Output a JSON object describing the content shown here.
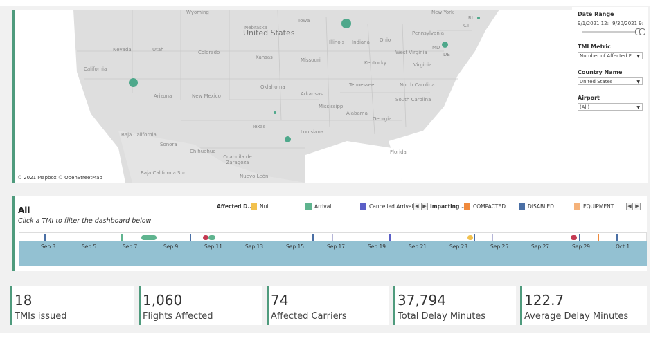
{
  "map": {
    "attribution": "© 2021 Mapbox © OpenStreetMap",
    "country_label": "United States",
    "place_labels": [
      "Wyoming",
      "Nebraska",
      "Iowa",
      "New York",
      "Pennsylvania",
      "Illinois",
      "Indiana",
      "Ohio",
      "Nevada",
      "Utah",
      "Colorado",
      "Kansas",
      "Missouri",
      "Kentucky",
      "West Virginia",
      "Virginia",
      "MD",
      "DE",
      "CT",
      "RI",
      "California",
      "Oklahoma",
      "Arkansas",
      "Tennessee",
      "North Carolina",
      "Arizona",
      "New Mexico",
      "Mississippi",
      "South Carolina",
      "Alabama",
      "Georgia",
      "Texas",
      "Louisiana",
      "Baja California",
      "Sonora",
      "Chihuahua",
      "Coahuila de Zaragoza",
      "Florida",
      "Baja California Sur",
      "Nuevo León"
    ],
    "dot_color": "#4ea88b"
  },
  "filters": {
    "date_range": {
      "title": "Date Range",
      "start": "9/1/2021 12:",
      "end": "9/30/2021 9:"
    },
    "tmi_metric": {
      "title": "TMI Metric",
      "value": "Number of Affected F..."
    },
    "country": {
      "title": "Country Name",
      "value": "United States"
    },
    "airport": {
      "title": "Airport",
      "value": "(All)"
    }
  },
  "timeline": {
    "title": "All",
    "subtitle": "Click a TMI to filter the dashboard below",
    "legend": [
      {
        "heading": "Affected D...",
        "items": [
          {
            "label": "Null",
            "color": "#f2c14e"
          },
          {
            "label": "Arrival",
            "color": "#5fb48f"
          },
          {
            "label": "Cancelled Arrival",
            "color": "#5b5fc7"
          }
        ]
      },
      {
        "heading": "Impacting ...",
        "items": [
          {
            "label": "COMPACTED",
            "color": "#f08a3c"
          },
          {
            "label": "DISABLED",
            "color": "#4a6fa5"
          },
          {
            "label": "EQUIPMENT",
            "color": "#f5b27a"
          }
        ]
      }
    ],
    "nav_prev": "◀",
    "nav_next": "▶",
    "ticks": [
      "Sep 3",
      "Sep 5",
      "Sep 7",
      "Sep 9",
      "Sep 11",
      "Sep 13",
      "Sep 15",
      "Sep 17",
      "Sep 19",
      "Sep 21",
      "Sep 23",
      "Sep 25",
      "Sep 27",
      "Sep 29",
      "Oct 1"
    ],
    "band_color": "#93c1d2"
  },
  "kpis": [
    {
      "value": "18",
      "label": "TMIs issued"
    },
    {
      "value": "1,060",
      "label": "Flights Affected"
    },
    {
      "value": "74",
      "label": "Affected Carriers"
    },
    {
      "value": "37,794",
      "label": "Total Delay Minutes"
    },
    {
      "value": "122.7",
      "label": "Average Delay Minutes"
    }
  ]
}
